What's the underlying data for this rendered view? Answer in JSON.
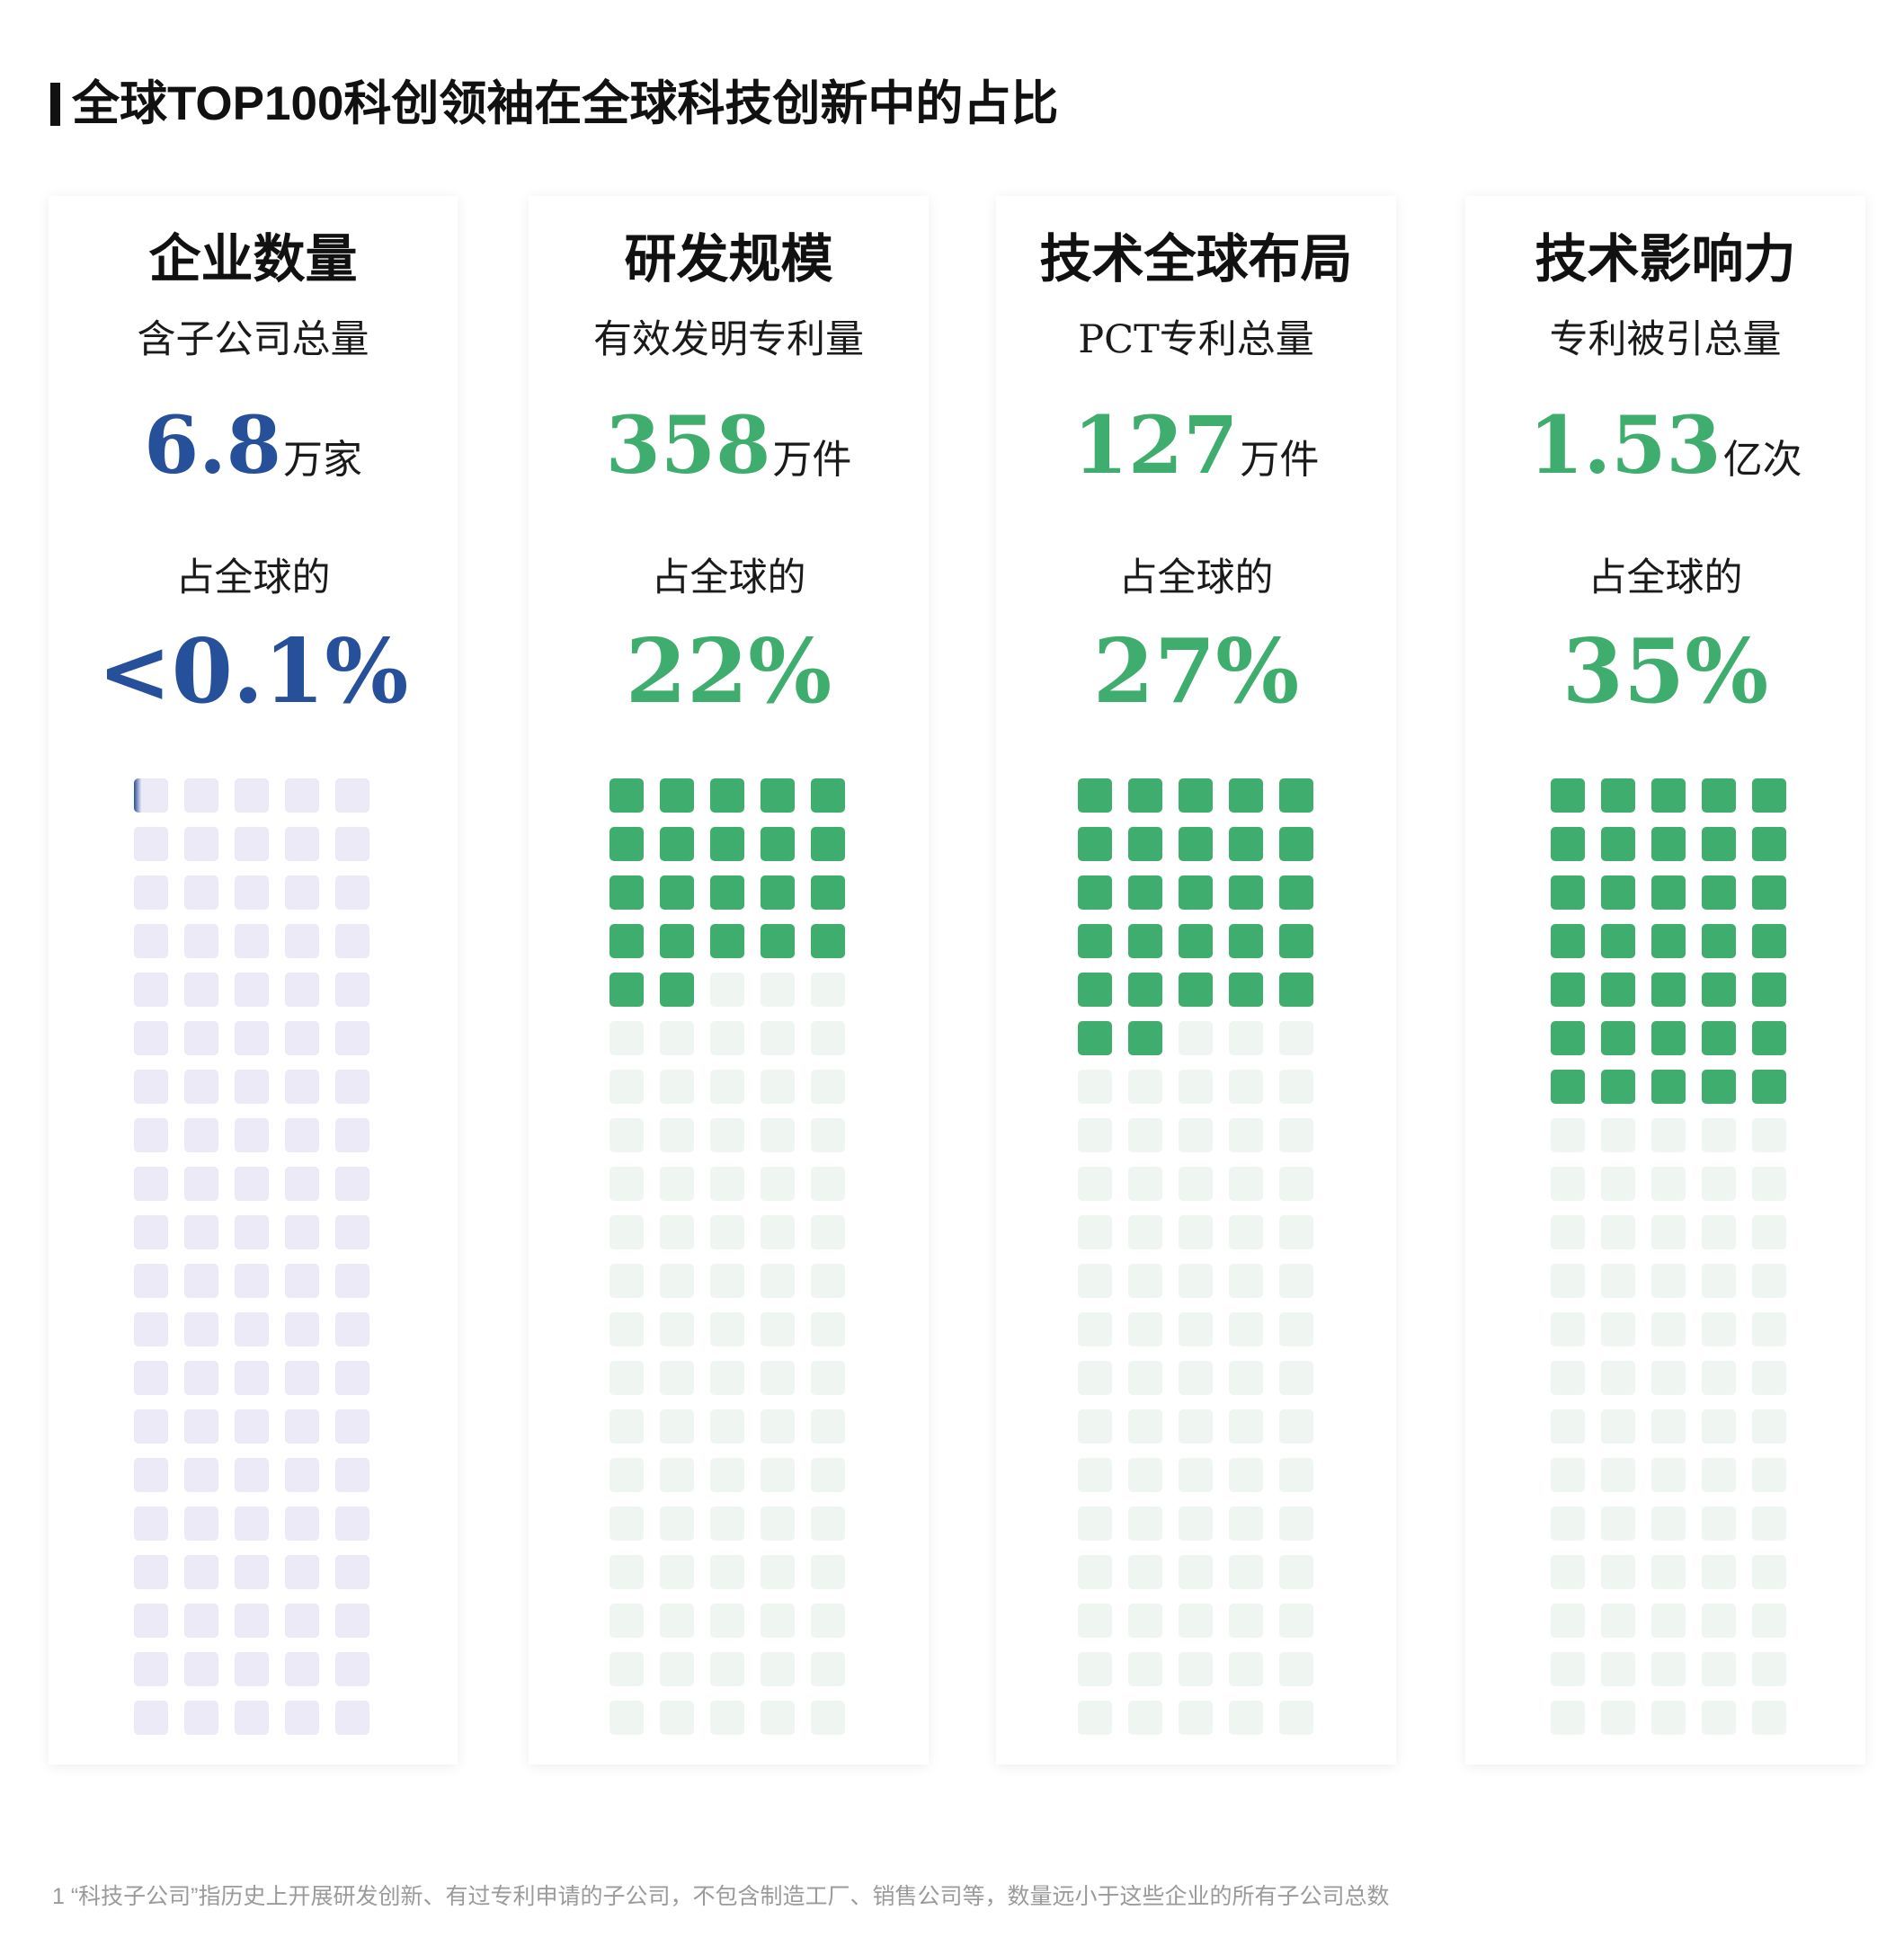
{
  "title": "全球TOP100科创领袖在全球科技创新中的占比",
  "panels": [
    {
      "title": "企业数量",
      "subtitle": "含子公司总量",
      "value": "6.8",
      "unit": "万家",
      "share_label": "占全球的",
      "share_text": "<0.1%",
      "share_percent": 0.1,
      "color": "#27509b",
      "empty_color": "#ebeaf6"
    },
    {
      "title": "研发规模",
      "subtitle": "有效发明专利量",
      "value": "358",
      "unit": "万件",
      "share_label": "占全球的",
      "share_text": "22%",
      "share_percent": 22,
      "color": "#3fad6e",
      "empty_color": "#eff6f1"
    },
    {
      "title": "技术全球布局",
      "subtitle": "PCT专利总量",
      "value": "127",
      "unit": "万件",
      "share_label": "占全球的",
      "share_text": "27%",
      "share_percent": 27,
      "color": "#3fad6e",
      "empty_color": "#eff6f1"
    },
    {
      "title": "技术影响力",
      "subtitle": "专利被引总量",
      "value": "1.53",
      "unit": "亿次",
      "share_label": "占全球的",
      "share_text": "35%",
      "share_percent": 35,
      "color": "#3fad6e",
      "empty_color": "#eff6f1"
    }
  ],
  "chart_data": {
    "type": "waffle",
    "categories": [
      "企业数量",
      "研发规模",
      "技术全球布局",
      "技术影响力"
    ],
    "values": [
      0.1,
      22,
      27,
      35
    ],
    "grid": {
      "columns": 5,
      "rows": 20
    }
  },
  "footnote": "1 “科技子公司”指历史上开展研发创新、有过专利申请的子公司，不包含制造工厂、销售公司等，数量远小于这些企业的所有子公司总数"
}
